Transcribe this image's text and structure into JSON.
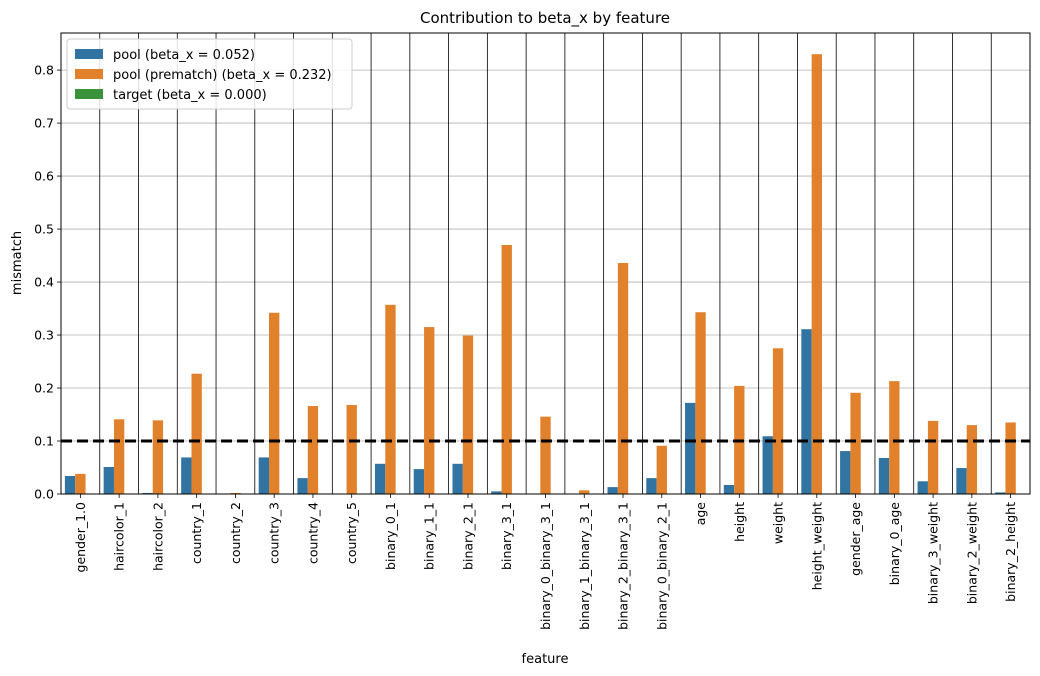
{
  "chart_data": {
    "type": "bar",
    "title": "Contribution to beta_x by feature",
    "xlabel": "feature",
    "ylabel": "mismatch",
    "ylim": [
      0,
      0.87
    ],
    "yticks": [
      "0.0",
      "0.1",
      "0.2",
      "0.3",
      "0.4",
      "0.5",
      "0.6",
      "0.7",
      "0.8"
    ],
    "grid": "horizontal",
    "legend_position": "top-left",
    "reference_line": {
      "y": 0.1,
      "style": "dashed",
      "color": "#000000"
    },
    "categories": [
      "gender_1.0",
      "haircolor_1",
      "haircolor_2",
      "country_1",
      "country_2",
      "country_3",
      "country_4",
      "country_5",
      "binary_0_1",
      "binary_1_1",
      "binary_2_1",
      "binary_3_1",
      "binary_0_binary_3_1",
      "binary_1_binary_3_1",
      "binary_2_binary_3_1",
      "binary_0_binary_2_1",
      "age",
      "height",
      "weight",
      "height_weight",
      "gender_age",
      "binary_0_age",
      "binary_3_weight",
      "binary_2_weight",
      "binary_2_height"
    ],
    "series": [
      {
        "name": "pool (beta_x = 0.052)",
        "color": "#3274a1",
        "values": [
          0.034,
          0.051,
          0.002,
          0.069,
          0.001,
          0.069,
          0.03,
          0.0,
          0.057,
          0.047,
          0.057,
          0.005,
          0.0,
          0.0,
          0.013,
          0.03,
          0.172,
          0.017,
          0.109,
          0.311,
          0.081,
          0.068,
          0.024,
          0.049,
          0.003
        ]
      },
      {
        "name": "pool (prematch) (beta_x = 0.232)",
        "color": "#e1812c",
        "values": [
          0.038,
          0.141,
          0.139,
          0.227,
          0.002,
          0.342,
          0.166,
          0.168,
          0.357,
          0.315,
          0.299,
          0.47,
          0.146,
          0.007,
          0.436,
          0.091,
          0.343,
          0.204,
          0.275,
          0.83,
          0.191,
          0.213,
          0.138,
          0.13,
          0.135
        ]
      },
      {
        "name": "target (beta_x = 0.000)",
        "color": "#3a923a",
        "values": [
          0,
          0,
          0,
          0,
          0,
          0,
          0,
          0,
          0,
          0,
          0,
          0,
          0,
          0,
          0,
          0,
          0,
          0,
          0,
          0,
          0,
          0,
          0,
          0,
          0
        ]
      }
    ]
  }
}
